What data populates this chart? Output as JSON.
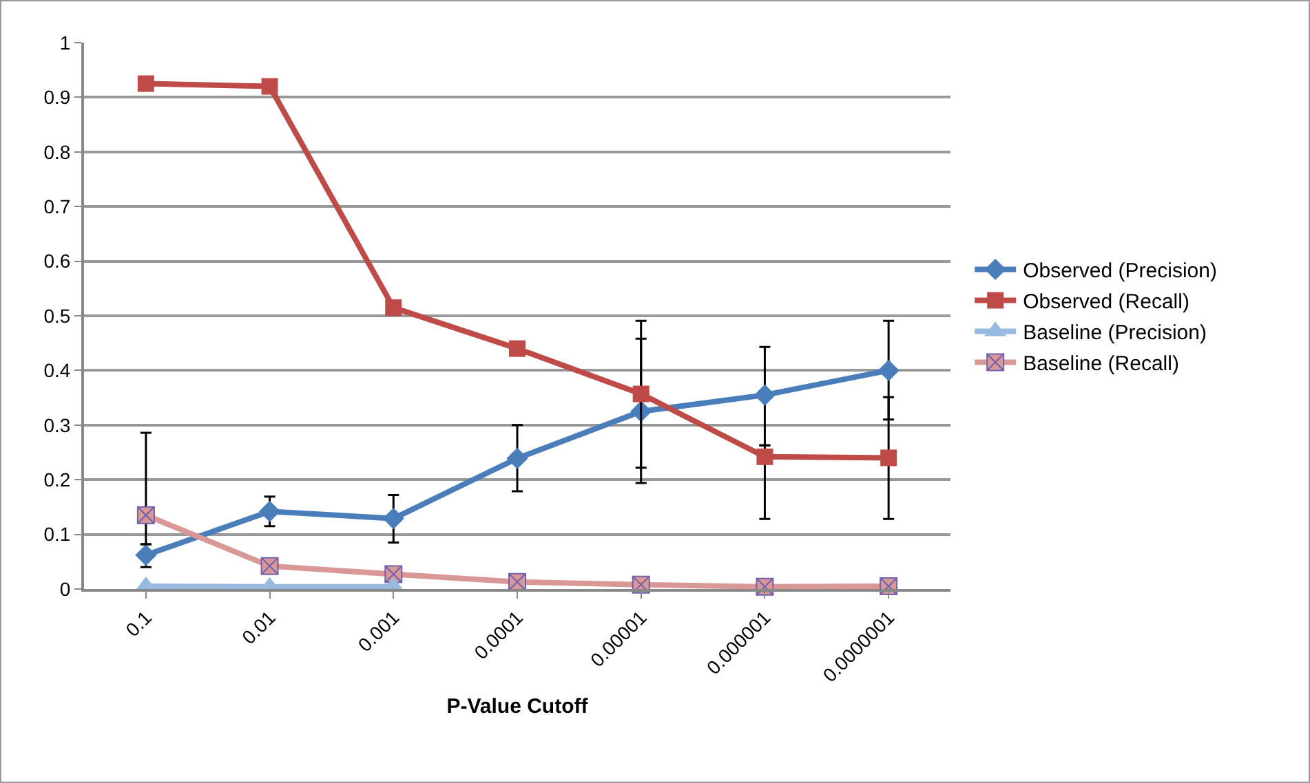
{
  "chart_data": {
    "type": "line",
    "xlabel": "P-Value Cutoff",
    "categories": [
      "0.1",
      "0.01",
      "0.001",
      "0.0001",
      "0.00001",
      "0.000001",
      "0.0000001"
    ],
    "series": [
      {
        "name": "Observed (Precision)",
        "color": "#4a7ebb",
        "marker": "diamond",
        "values": [
          0.062,
          0.142,
          0.129,
          0.239,
          0.325,
          0.355,
          0.4
        ],
        "errors": [
          [
            0.04,
            0.082
          ],
          [
            0.115,
            0.169
          ],
          [
            0.085,
            0.172
          ],
          [
            0.179,
            0.3
          ],
          [
            0.194,
            0.458
          ],
          [
            0.263,
            0.443
          ],
          [
            0.31,
            0.491
          ]
        ]
      },
      {
        "name": "Observed (Recall)",
        "color": "#be4b48",
        "marker": "square",
        "values": [
          0.925,
          0.92,
          0.515,
          0.44,
          0.357,
          0.242,
          0.24
        ],
        "errors": [
          null,
          null,
          null,
          null,
          [
            0.222,
            0.491
          ],
          [
            0.128,
            0.263
          ],
          [
            0.128,
            0.351
          ]
        ]
      },
      {
        "name": "Baseline (Precision)",
        "color": "#98b9e0",
        "marker": "triangle",
        "values": [
          0.005,
          0.004,
          0.004,
          null,
          null,
          null,
          null
        ]
      },
      {
        "name": "Baseline (Recall)",
        "color": "#d99795",
        "marker": "cross",
        "values": [
          0.135,
          0.042,
          0.027,
          0.013,
          0.008,
          0.004,
          0.005
        ],
        "errors": [
          [
            0.082,
            0.286
          ],
          null,
          null,
          null,
          null,
          null,
          null
        ]
      }
    ],
    "ylim": [
      0,
      1
    ],
    "yticks": [
      0,
      0.1,
      0.2,
      0.3,
      0.4,
      0.5,
      0.6,
      0.7,
      0.8,
      0.9,
      1
    ],
    "grid": "y",
    "legend": "right"
  }
}
